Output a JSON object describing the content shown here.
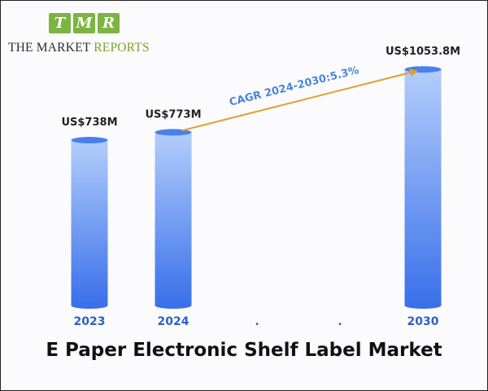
{
  "logo": {
    "letters": [
      "T",
      "M",
      "R"
    ],
    "sub_a": "THE MARKET ",
    "sub_b": "REPORTS"
  },
  "colors": {
    "logo_green": "#7cb342",
    "bar_top": "#b3cdfb",
    "bar_bottom": "#3a70ea",
    "arrow": "#e0a030",
    "tick": "#2d5fc7"
  },
  "chart_data": {
    "type": "bar",
    "title": "E Paper Electronic Shelf Label Market",
    "categories": [
      "2023",
      "2024",
      ".",
      ".",
      "2030"
    ],
    "values": [
      738,
      773,
      null,
      null,
      1053.8
    ],
    "value_labels": [
      "US$738M",
      "US$773M",
      "",
      "",
      "US$1053.8M"
    ],
    "annotation": {
      "text": "CAGR 2024-2030:5.3%",
      "from": "2024",
      "to": "2030"
    },
    "xlabel": "",
    "ylabel": "",
    "grid": false
  }
}
